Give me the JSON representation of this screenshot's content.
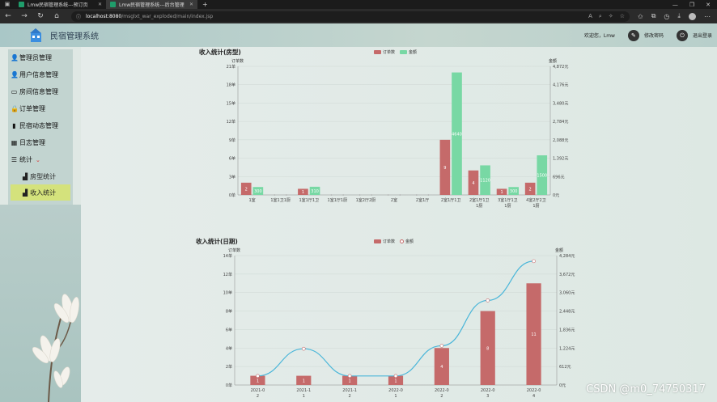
{
  "browser": {
    "tabs": [
      {
        "label": "Lmw民宿管理系统---预订页"
      },
      {
        "label": "Lmw民宿管理系统---后台管理"
      }
    ],
    "url_host": "localhost:8080",
    "url_path": "/msglxt_war_exploded/main/index.jsp"
  },
  "header": {
    "title": "民宿管理系统",
    "welcome": "欢迎您，Lmw",
    "change_password": "修改密码",
    "logout": "退出登录"
  },
  "sidebar": {
    "items": [
      {
        "label": "管理员管理",
        "icon": "user-icon"
      },
      {
        "label": "用户信息管理",
        "icon": "user-icon"
      },
      {
        "label": "房间信息管理",
        "icon": "inbox-icon"
      },
      {
        "label": "订单管理",
        "icon": "lock-icon"
      },
      {
        "label": "民宿动态管理",
        "icon": "book-icon"
      },
      {
        "label": "日志管理",
        "icon": "calendar-icon"
      },
      {
        "label": "统计",
        "icon": "list-icon"
      }
    ],
    "sub_items": [
      {
        "label": "房型统计"
      },
      {
        "label": "收入统计"
      }
    ]
  },
  "colors": {
    "bar_red": "#c56a6a",
    "bar_green": "#78d8a4",
    "line_blue": "#4ab6d9"
  },
  "chart_data": [
    {
      "type": "bar",
      "title": "收入统计(房型)",
      "legend": [
        "订单数",
        "金额"
      ],
      "left_axis_label": "订单数",
      "right_axis_label": "金额",
      "categories": [
        [
          "1室"
        ],
        [
          "1室1卫1厨"
        ],
        [
          "1室1厅1卫"
        ],
        [
          "1室1厅1厨"
        ],
        [
          "1室2厅2厨"
        ],
        [
          "2室"
        ],
        [
          "2室1厅"
        ],
        [
          "2室1厅1卫"
        ],
        [
          "2室1厅1卫",
          "1厨"
        ],
        [
          "3室1厅1卫",
          "1厨"
        ],
        [
          "4室2厅2卫",
          "1厨"
        ]
      ],
      "left_ticks": [
        "0单",
        "3单",
        "6单",
        "9单",
        "12单",
        "15单",
        "18单",
        "21单"
      ],
      "right_ticks": [
        "0元",
        "696元",
        "1,392元",
        "2,088元",
        "2,784元",
        "3,480元",
        "4,176元",
        "4,872元"
      ],
      "left_max": 21,
      "right_max": 4872,
      "series": [
        {
          "name": "订单数",
          "values": [
            2,
            0,
            1,
            0,
            0,
            0,
            0,
            9,
            4,
            1,
            2
          ],
          "labels": [
            "2",
            "",
            "1",
            "",
            "",
            "",
            "",
            "9",
            "4",
            "1",
            "2"
          ]
        },
        {
          "name": "金额",
          "values": [
            300,
            0,
            310,
            0,
            0,
            0,
            0,
            4640,
            1120,
            300,
            1500
          ],
          "labels": [
            "300",
            "",
            "310",
            "",
            "",
            "",
            "",
            "4640",
            "1120",
            "300",
            "1500"
          ]
        }
      ]
    },
    {
      "type": "bar",
      "title": "收入统计(日期)",
      "legend": [
        "订单数",
        "金额"
      ],
      "left_axis_label": "订单数",
      "right_axis_label": "金额",
      "categories": [
        [
          "2021-0",
          "2"
        ],
        [
          "2021-1",
          "1"
        ],
        [
          "2021-1",
          "2"
        ],
        [
          "2022-0",
          "1"
        ],
        [
          "2022-0",
          "2"
        ],
        [
          "2022-0",
          "3"
        ],
        [
          "2022-0",
          "4"
        ]
      ],
      "left_ticks": [
        "0单",
        "2单",
        "4单",
        "6单",
        "8单",
        "10单",
        "12单",
        "14单"
      ],
      "right_ticks": [
        "0元",
        "612元",
        "1,224元",
        "1,836元",
        "2,448元",
        "3,060元",
        "3,672元",
        "4,284元"
      ],
      "left_max": 14,
      "right_max": 4284,
      "series": [
        {
          "name": "订单数",
          "values": [
            1,
            1,
            1,
            1,
            4,
            8,
            11
          ],
          "labels": [
            "1",
            "1",
            "1",
            "1",
            "4",
            "8",
            "11"
          ]
        },
        {
          "name": "金额",
          "values": [
            300,
            1200,
            300,
            300,
            1300,
            2800,
            4100
          ]
        }
      ]
    }
  ],
  "watermark": "CSDN @m0_74750317"
}
